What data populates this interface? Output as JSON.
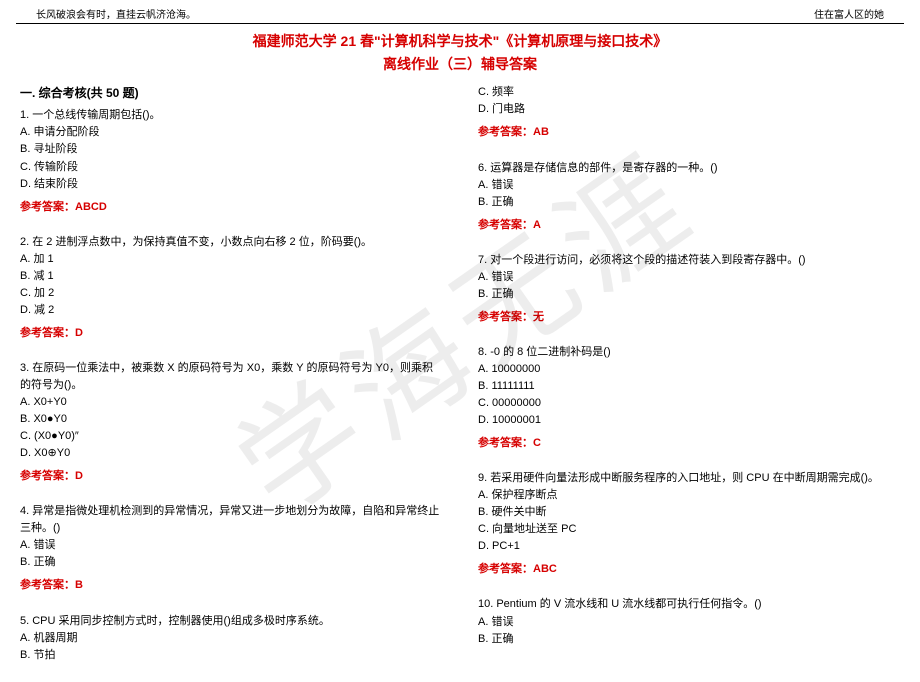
{
  "header": {
    "left": "长风破浪会有时，直挂云帆济沧海。",
    "right": "住在富人区的她"
  },
  "title_line1": "福建师范大学 21 春\"计算机科学与技术\"《计算机原理与接口技术》",
  "title_line2": "离线作业（三）辅导答案",
  "section": "一. 综合考核(共 50 题)",
  "watermark": "学海无涯",
  "left": {
    "q1": {
      "stem": "1. 一个总线传输周期包括()。",
      "a": "A. 申请分配阶段",
      "b": "B. 寻址阶段",
      "c": "C. 传输阶段",
      "d": "D. 结束阶段",
      "ans": "参考答案：ABCD"
    },
    "q2": {
      "stem": "2. 在 2 进制浮点数中，为保持真值不变，小数点向右移 2 位，阶码要()。",
      "a": "A. 加 1",
      "b": "B. 减 1",
      "c": "C. 加 2",
      "d": "D. 减 2",
      "ans": "参考答案：D"
    },
    "q3": {
      "stem": "3. 在原码一位乘法中，被乘数 X 的原码符号为 X0，乘数 Y 的原码符号为 Y0，则乘积的符号为()。",
      "a": "A. X0+Y0",
      "b": "B. X0●Y0",
      "c": "C. (X0●Y0)″",
      "d": "D. X0⊕Y0",
      "ans": "参考答案：D"
    },
    "q4": {
      "stem": "4. 异常是指微处理机检测到的异常情况，异常又进一步地划分为故障，自陷和异常终止三种。()",
      "a": "A. 错误",
      "b": "B. 正确",
      "ans": "参考答案：B"
    },
    "q5": {
      "stem": "5. CPU 采用同步控制方式时，控制器使用()组成多极时序系统。",
      "a": "A. 机器周期",
      "b": "B. 节拍"
    }
  },
  "right": {
    "q5c": {
      "c": "C. 频率",
      "d": "D. 门电路",
      "ans": "参考答案：AB"
    },
    "q6": {
      "stem": "6. 运算器是存储信息的部件，是寄存器的一种。()",
      "a": "A. 错误",
      "b": "B. 正确",
      "ans": "参考答案：A"
    },
    "q7": {
      "stem": "7. 对一个段进行访问，必须将这个段的描述符装入到段寄存器中。()",
      "a": "A. 错误",
      "b": "B. 正确",
      "ans": "参考答案：无"
    },
    "q8": {
      "stem": "8. -0 的 8 位二进制补码是()",
      "a": "A. 10000000",
      "b": "B. 11111111",
      "c": "C. 00000000",
      "d": "D. 10000001",
      "ans": "参考答案：C"
    },
    "q9": {
      "stem": "9. 若采用硬件向量法形成中断服务程序的入口地址，则 CPU 在中断周期需完成()。",
      "a": "A. 保护程序断点",
      "b": "B. 硬件关中断",
      "c": "C. 向量地址送至 PC",
      "d": "D. PC+1",
      "ans": "参考答案：ABC"
    },
    "q10": {
      "stem": "10. Pentium 的 V 流水线和 U 流水线都可执行任何指令。()",
      "a": "A. 错误",
      "b": "B. 正确"
    }
  }
}
